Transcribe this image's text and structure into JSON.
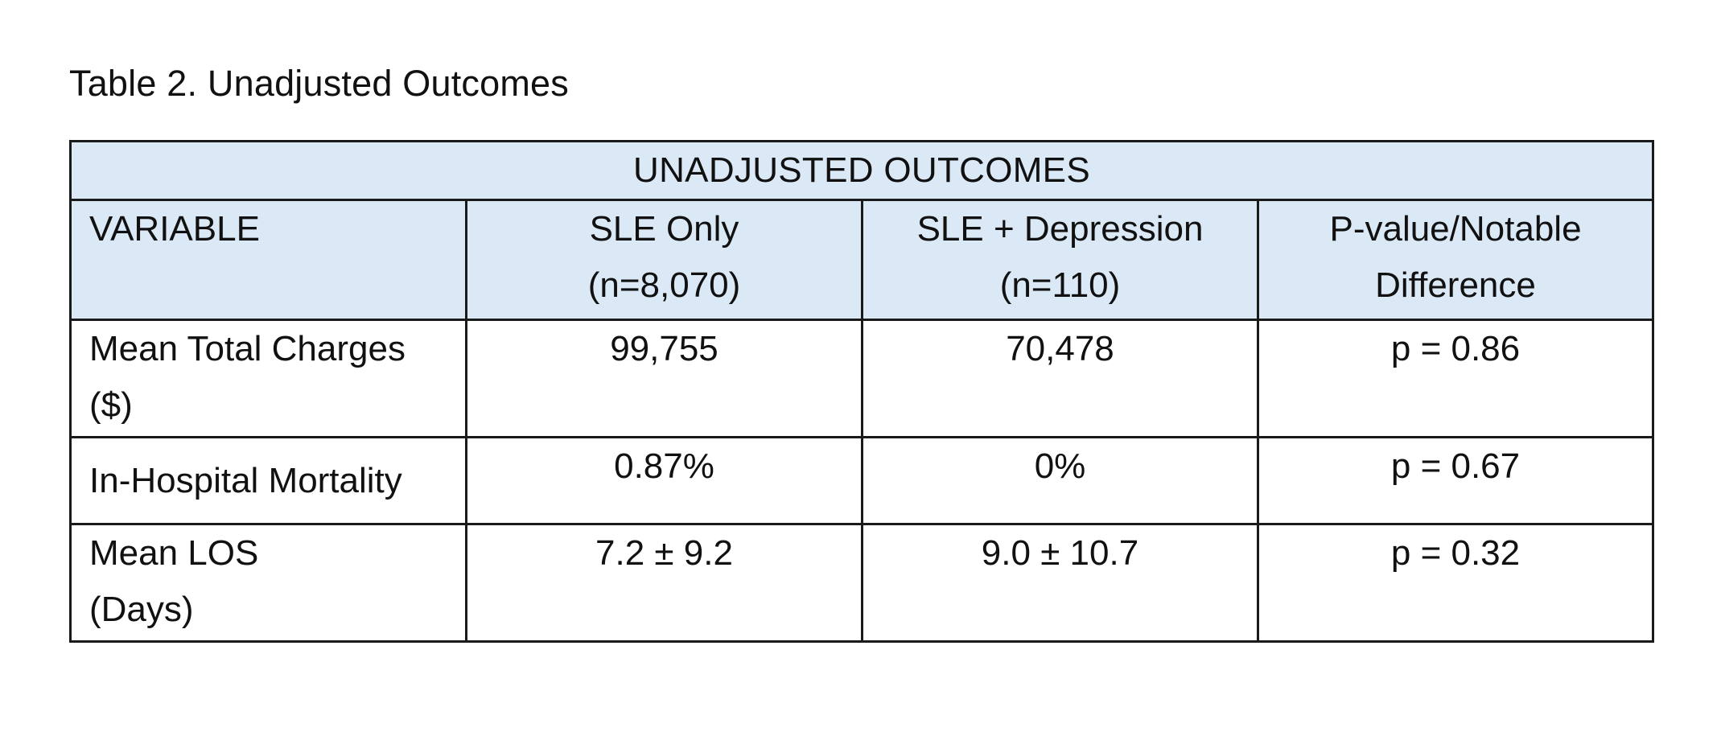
{
  "caption": "Table 2.  Unadjusted Outcomes",
  "table": {
    "title": "UNADJUSTED OUTCOMES",
    "headers": [
      {
        "line1": "VARIABLE",
        "line2": ""
      },
      {
        "line1": "SLE Only",
        "line2": "(n=8,070)"
      },
      {
        "line1": "SLE + Depression",
        "line2": "(n=110)"
      },
      {
        "line1": "P-value/Notable",
        "line2": "Difference"
      }
    ],
    "rows": [
      {
        "variable_line1": "Mean Total Charges",
        "variable_line2": "($)",
        "sle_only": "99,755",
        "sle_depression": "70,478",
        "p_value": "p = 0.86"
      },
      {
        "variable_line1": "In-Hospital Mortality",
        "variable_line2": "",
        "sle_only": "0.87%",
        "sle_depression": "0%",
        "p_value": "p = 0.67"
      },
      {
        "variable_line1": "Mean LOS",
        "variable_line2": "(Days)",
        "sle_only": "7.2 ± 9.2",
        "sle_depression": "9.0 ± 10.7",
        "p_value": "p = 0.32"
      }
    ]
  }
}
